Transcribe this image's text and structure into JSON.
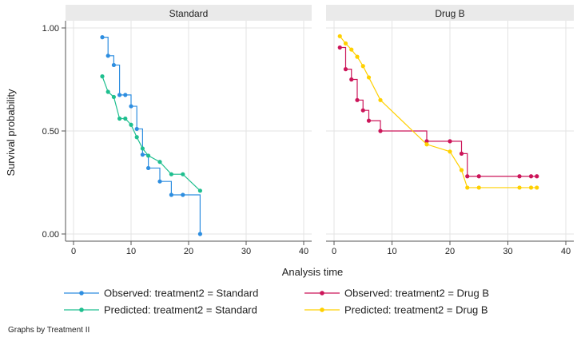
{
  "chart_data": {
    "type": "line",
    "style": "step",
    "ylabel": "Survival probability",
    "xlabel": "Analysis time",
    "note": "Graphs by Treatment II",
    "xlim": [
      0,
      40
    ],
    "ylim": [
      0,
      1
    ],
    "xticks": [
      0,
      10,
      20,
      30,
      40
    ],
    "yticks": [
      0,
      0.5,
      1
    ],
    "ytick_labels": [
      "0.00",
      "0.50",
      "1.00"
    ],
    "grid": true,
    "legend_position": "bottom",
    "panels": [
      {
        "title": "Standard",
        "series": [
          {
            "name": "Observed: treatment2 = Standard",
            "color": "#2e8ee0",
            "step": true,
            "points": [
              [
                5,
                0.955
              ],
              [
                6,
                0.865
              ],
              [
                7,
                0.82
              ],
              [
                8,
                0.675
              ],
              [
                9,
                0.675
              ],
              [
                10,
                0.62
              ],
              [
                11,
                0.51
              ],
              [
                12,
                0.385
              ],
              [
                13,
                0.32
              ],
              [
                15,
                0.255
              ],
              [
                17,
                0.19
              ],
              [
                19,
                0.19
              ],
              [
                22,
                0.0
              ]
            ]
          },
          {
            "name": "Predicted: treatment2 = Standard",
            "color": "#1fbf8f",
            "step": false,
            "points": [
              [
                5,
                0.765
              ],
              [
                6,
                0.69
              ],
              [
                7,
                0.665
              ],
              [
                8,
                0.56
              ],
              [
                9,
                0.56
              ],
              [
                10,
                0.53
              ],
              [
                11,
                0.47
              ],
              [
                12,
                0.415
              ],
              [
                13,
                0.38
              ],
              [
                15,
                0.35
              ],
              [
                17,
                0.29
              ],
              [
                19,
                0.29
              ],
              [
                22,
                0.21
              ]
            ]
          }
        ]
      },
      {
        "title": "Drug B",
        "series": [
          {
            "name": "Observed: treatment2 = Drug B",
            "color": "#cc1559",
            "step": true,
            "points": [
              [
                1,
                0.905
              ],
              [
                2,
                0.8
              ],
              [
                3,
                0.75
              ],
              [
                4,
                0.65
              ],
              [
                5,
                0.6
              ],
              [
                6,
                0.55
              ],
              [
                8,
                0.5
              ],
              [
                16,
                0.45
              ],
              [
                20,
                0.45
              ],
              [
                22,
                0.39
              ],
              [
                23,
                0.28
              ],
              [
                25,
                0.28
              ],
              [
                32,
                0.28
              ],
              [
                34,
                0.28
              ],
              [
                35,
                0.28
              ]
            ]
          },
          {
            "name": "Predicted: treatment2 = Drug B",
            "color": "#ffd000",
            "step": false,
            "points": [
              [
                1,
                0.96
              ],
              [
                2,
                0.925
              ],
              [
                3,
                0.895
              ],
              [
                4,
                0.86
              ],
              [
                5,
                0.815
              ],
              [
                6,
                0.76
              ],
              [
                8,
                0.65
              ],
              [
                16,
                0.435
              ],
              [
                20,
                0.4
              ],
              [
                22,
                0.31
              ],
              [
                23,
                0.225
              ],
              [
                25,
                0.225
              ],
              [
                32,
                0.225
              ],
              [
                34,
                0.225
              ],
              [
                35,
                0.225
              ]
            ]
          }
        ]
      }
    ],
    "legend": [
      {
        "label": "Observed: treatment2 = Standard",
        "color": "#2e8ee0"
      },
      {
        "label": "Observed: treatment2 = Drug B",
        "color": "#cc1559"
      },
      {
        "label": "Predicted: treatment2 = Standard",
        "color": "#1fbf8f"
      },
      {
        "label": "Predicted: treatment2 = Drug B",
        "color": "#ffd000"
      }
    ]
  }
}
